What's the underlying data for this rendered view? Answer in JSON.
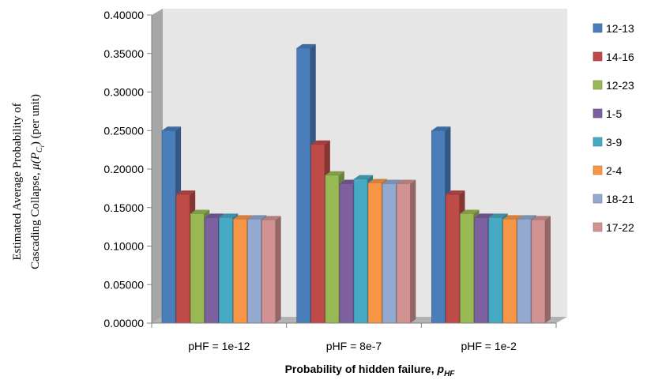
{
  "chart_data": {
    "type": "bar",
    "categories": [
      "pHF = 1e-12",
      "pHF = 8e-7",
      "pHF = 1e-2"
    ],
    "series": [
      {
        "name": "12-13",
        "color": "#4A7EBB",
        "values": [
          0.25,
          0.357,
          0.25
        ]
      },
      {
        "name": "14-16",
        "color": "#BE4B48",
        "values": [
          0.167,
          0.232,
          0.167
        ]
      },
      {
        "name": "12-23",
        "color": "#98B954",
        "values": [
          0.142,
          0.192,
          0.142
        ]
      },
      {
        "name": "1-5",
        "color": "#7D60A0",
        "values": [
          0.137,
          0.181,
          0.137
        ]
      },
      {
        "name": "3-9",
        "color": "#46AAC5",
        "values": [
          0.137,
          0.187,
          0.137
        ]
      },
      {
        "name": "2-4",
        "color": "#F79646",
        "values": [
          0.135,
          0.182,
          0.135
        ]
      },
      {
        "name": "18-21",
        "color": "#93A9CF",
        "values": [
          0.135,
          0.181,
          0.135
        ]
      },
      {
        "name": "17-22",
        "color": "#D19392",
        "values": [
          0.134,
          0.181,
          0.134
        ]
      }
    ],
    "ylim": [
      0,
      0.4
    ],
    "yticks": [
      "0.00000",
      "0.05000",
      "0.10000",
      "0.15000",
      "0.20000",
      "0.25000",
      "0.30000",
      "0.35000",
      "0.40000"
    ],
    "xlabel": "Probability of hidden failure,",
    "xlabel_symbol": "p",
    "xlabel_subscript": "HF",
    "ylabel_line1": "Estimated Average Probability of",
    "ylabel_line2_prefix": "Cascading Collapse,",
    "ylabel_mu": "μ(",
    "ylabel_symbol": "P",
    "ylabel_subscript": "C",
    "ylabel_subsubscript": "i",
    "ylabel_close": ")",
    "ylabel_unit": "(per unit)",
    "legend_position": "right",
    "style": "3d-clustered-column",
    "grid": false
  }
}
